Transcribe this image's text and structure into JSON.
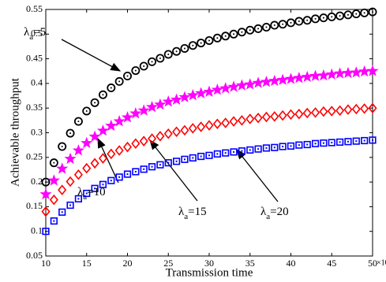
{
  "chart_data": {
    "type": "scatter",
    "xlabel": "Transmission time",
    "ylabel": "Achievable throughput",
    "x_unit": "×10⁻³(s)",
    "x": [
      10,
      11,
      12,
      13,
      14,
      15,
      16,
      17,
      18,
      19,
      20,
      21,
      22,
      23,
      24,
      25,
      26,
      27,
      28,
      29,
      30,
      31,
      32,
      33,
      34,
      35,
      36,
      37,
      38,
      39,
      40,
      41,
      42,
      43,
      44,
      45,
      46,
      47,
      48,
      49,
      50
    ],
    "xlim": [
      10,
      50
    ],
    "xticks": [
      10,
      15,
      20,
      25,
      30,
      35,
      40,
      45,
      50
    ],
    "ylim": [
      0.05,
      0.55
    ],
    "yticks": [
      0.05,
      0.1,
      0.15,
      0.2,
      0.25,
      0.3,
      0.35,
      0.4,
      0.45,
      0.5,
      0.55
    ],
    "grid": false,
    "series": [
      {
        "marker": "circle-dot",
        "color": "#000000",
        "values": [
          0.2,
          0.239,
          0.272,
          0.299,
          0.323,
          0.344,
          0.361,
          0.377,
          0.391,
          0.404,
          0.415,
          0.426,
          0.435,
          0.444,
          0.451,
          0.459,
          0.465,
          0.471,
          0.477,
          0.482,
          0.487,
          0.492,
          0.496,
          0.5,
          0.504,
          0.508,
          0.511,
          0.514,
          0.518,
          0.52,
          0.523,
          0.526,
          0.528,
          0.531,
          0.533,
          0.535,
          0.537,
          0.539,
          0.541,
          0.543,
          0.545
        ]
      },
      {
        "marker": "star",
        "color": "#ff00ff",
        "values": [
          0.175,
          0.203,
          0.227,
          0.247,
          0.264,
          0.279,
          0.292,
          0.304,
          0.314,
          0.323,
          0.331,
          0.339,
          0.345,
          0.352,
          0.357,
          0.363,
          0.367,
          0.372,
          0.376,
          0.38,
          0.383,
          0.387,
          0.39,
          0.393,
          0.396,
          0.398,
          0.401,
          0.403,
          0.405,
          0.407,
          0.409,
          0.411,
          0.413,
          0.415,
          0.416,
          0.418,
          0.42,
          0.421,
          0.422,
          0.424,
          0.425
        ]
      },
      {
        "marker": "diamond",
        "color": "#ff0000",
        "values": [
          0.14,
          0.164,
          0.184,
          0.201,
          0.215,
          0.228,
          0.238,
          0.248,
          0.257,
          0.264,
          0.271,
          0.278,
          0.283,
          0.288,
          0.293,
          0.298,
          0.302,
          0.305,
          0.309,
          0.312,
          0.315,
          0.318,
          0.32,
          0.323,
          0.325,
          0.328,
          0.33,
          0.332,
          0.333,
          0.335,
          0.337,
          0.338,
          0.34,
          0.341,
          0.343,
          0.344,
          0.345,
          0.347,
          0.348,
          0.349,
          0.35
        ]
      },
      {
        "marker": "square-dot",
        "color": "#0000ff",
        "values": [
          0.1,
          0.121,
          0.139,
          0.153,
          0.166,
          0.177,
          0.187,
          0.195,
          0.203,
          0.21,
          0.216,
          0.221,
          0.226,
          0.231,
          0.235,
          0.239,
          0.242,
          0.246,
          0.249,
          0.252,
          0.254,
          0.257,
          0.259,
          0.261,
          0.263,
          0.265,
          0.267,
          0.269,
          0.27,
          0.272,
          0.273,
          0.275,
          0.276,
          0.278,
          0.279,
          0.28,
          0.281,
          0.282,
          0.283,
          0.284,
          0.285
        ]
      }
    ],
    "annotations": [
      {
        "symbol": "λ",
        "subscript": "a",
        "text": "=5"
      },
      {
        "symbol": "λ",
        "subscript": "a",
        "text": "=10"
      },
      {
        "symbol": "λ",
        "subscript": "a",
        "text": "=15"
      },
      {
        "symbol": "λ",
        "subscript": "a",
        "text": "=20"
      }
    ]
  }
}
